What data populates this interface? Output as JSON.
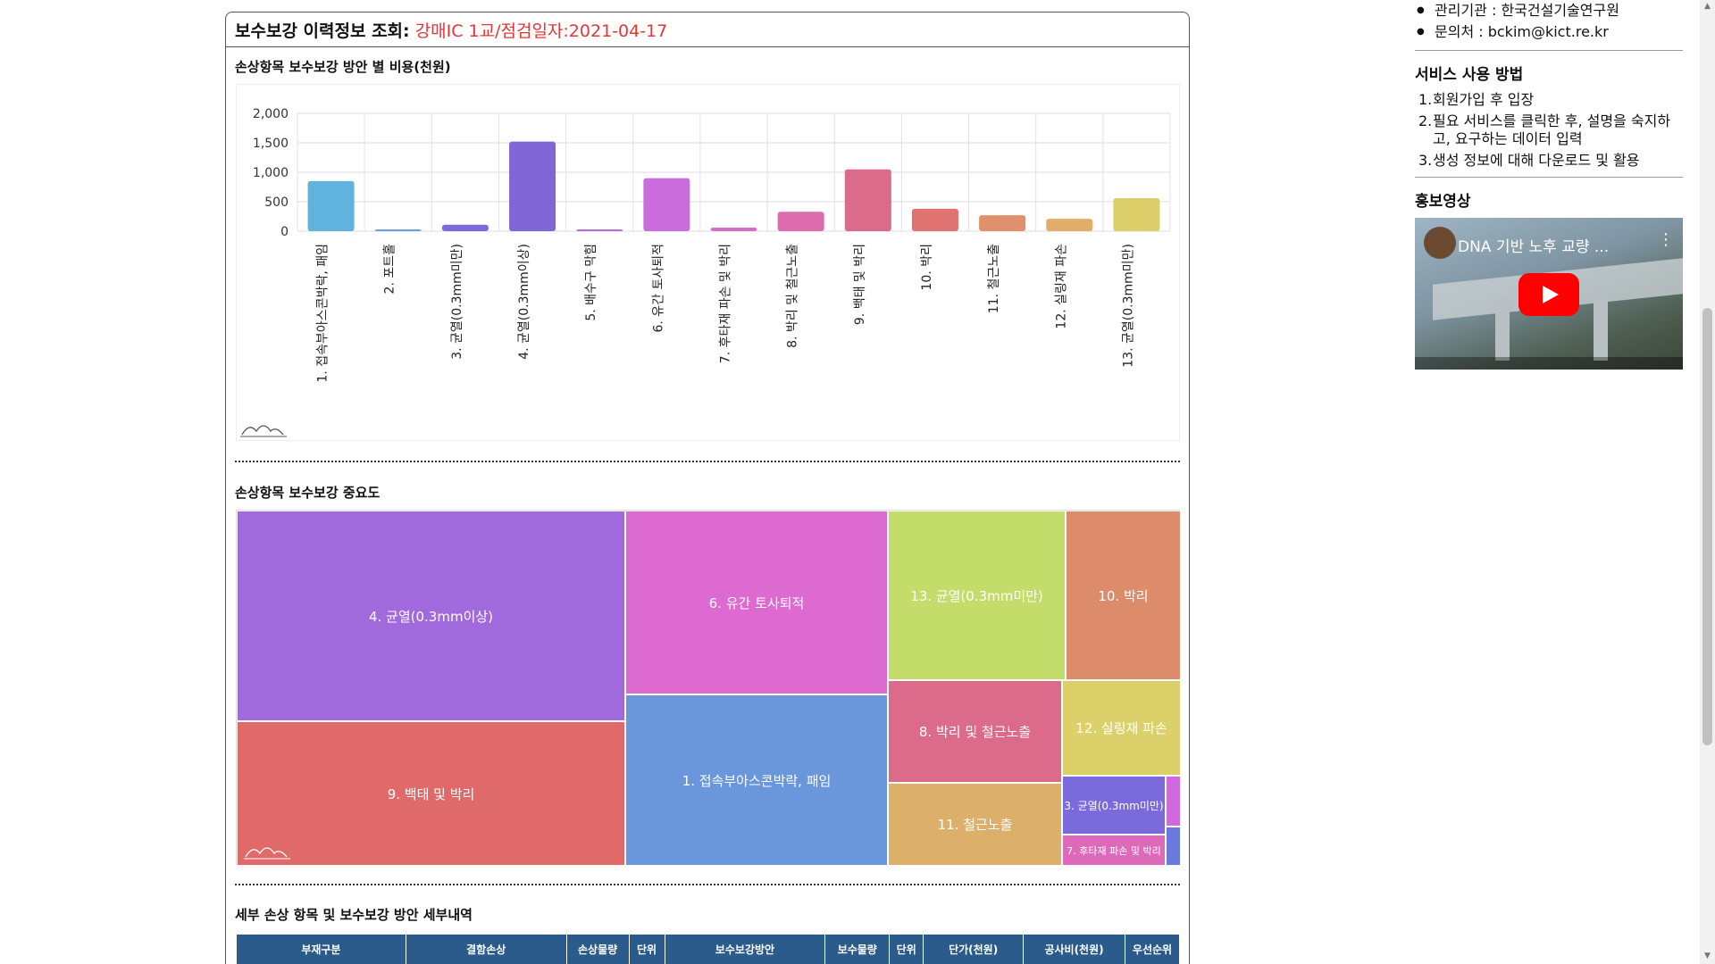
{
  "header": {
    "title": "보수보강 이력정보 조회:",
    "subtitle": "강매IC 1교/점검일자:2021-04-17"
  },
  "bar_section": {
    "title": "손상항목 보수보강 방안 별 비용(천원)"
  },
  "treemap_section": {
    "title": "손상항목 보수보강 중요도"
  },
  "detail_section": {
    "title": "세부 손상 항목 및 보수보강 방안 세부내역"
  },
  "chart_data": [
    {
      "type": "bar",
      "title": "손상항목 보수보강 방안 별 비용(천원)",
      "categories": [
        "1. 접속부아스콘박락, 패임",
        "2. 포트홀",
        "3. 균열(0.3mm미만)",
        "4. 균열(0.3mm이상)",
        "5. 배수구 막힘",
        "6. 유간 토사퇴적",
        "7. 후타재 파손 및 박리",
        "8. 박리 및 철근노출",
        "9. 백태 및 박리",
        "10. 박리",
        "11. 철근노출",
        "12. 실링재 파손",
        "13. 균열(0.3mm미만)"
      ],
      "values": [
        850,
        15,
        110,
        1520,
        15,
        900,
        60,
        330,
        1050,
        380,
        270,
        210,
        560
      ],
      "yticks": [
        "2,000",
        "1,500",
        "1,000",
        "500",
        "0"
      ],
      "ylim": [
        0,
        2000
      ],
      "colors": [
        "#5fb3dc",
        "#6aa0d9",
        "#7a6cdc",
        "#8166d8",
        "#b06ed6",
        "#c86ddb",
        "#d66dc6",
        "#dc6cab",
        "#dc6a8a",
        "#e07272",
        "#e0906c",
        "#e0ad6a",
        "#dccf6a"
      ]
    },
    {
      "type": "treemap",
      "title": "손상항목 보수보강 중요도",
      "cells": [
        {
          "label": "4. 균열(0.3mm이상)",
          "color": "#a06adc"
        },
        {
          "label": "9. 백태 및 박리",
          "color": "#e06a6a"
        },
        {
          "label": "6. 유간 토사퇴적",
          "color": "#dc6ad0"
        },
        {
          "label": "1. 접속부아스콘박락, 패임",
          "color": "#6a96dc"
        },
        {
          "label": "13. 균열(0.3mm미만)",
          "color": "#c4dc6a"
        },
        {
          "label": "10. 박리",
          "color": "#dc8c6a"
        },
        {
          "label": "8. 박리 및 철근노출",
          "color": "#dc6a8a"
        },
        {
          "label": "12. 실링재 파손",
          "color": "#dcd06a"
        },
        {
          "label": "11. 철근노출",
          "color": "#dcb06a"
        },
        {
          "label": "3. 균열(0.3mm미만)",
          "color": "#7a6adc"
        },
        {
          "label": "7. 후타재 파손 및 박리",
          "color": "#dc6ab8"
        },
        {
          "label": "",
          "color": "#d06adc"
        },
        {
          "label": "",
          "color": "#6a7adc"
        }
      ]
    }
  ],
  "table": {
    "headers": [
      "부재구분",
      "결함손상",
      "손상물량",
      "단위",
      "보수보강방안",
      "보수물량",
      "단위",
      "단가(천원)",
      "공사비(천원)",
      "우선순위"
    ]
  },
  "sidebar": {
    "info": [
      "관리기관 : 한국건설기술연구원",
      "문의처 : bckim@kict.re.kr"
    ],
    "usage_title": "서비스 사용 방법",
    "usage_steps": [
      {
        "num": "1.",
        "text": "회원가입 후 입장"
      },
      {
        "num": "2.",
        "text": "필요 서비스를 클릭한 후, 설명을 숙지하고, 요구하는 데이터 입력"
      },
      {
        "num": "3.",
        "text": "생성 정보에 대해 다운로드 및 활용"
      }
    ],
    "promo_title": "홍보영상",
    "video_title": "DNA 기반 노후 교량 ..."
  }
}
